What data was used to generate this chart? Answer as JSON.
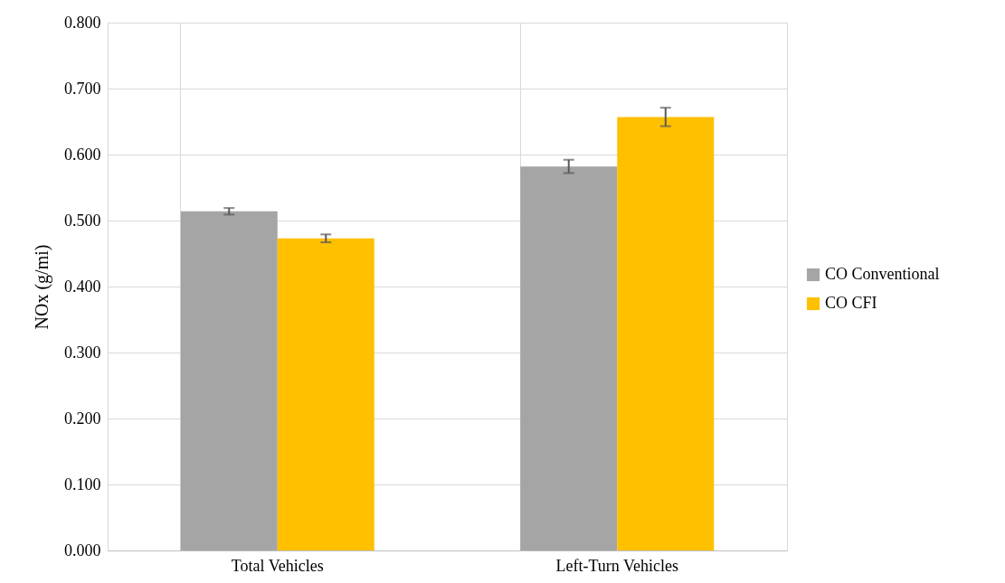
{
  "chart_data": {
    "type": "bar",
    "ylabel": "NOx (g/mi)",
    "categories": [
      "Total Vehicles",
      "Left-Turn Vehicles"
    ],
    "series": [
      {
        "name": "CO Conventional",
        "color": "#a5a5a5",
        "values": [
          0.514,
          0.582
        ],
        "errors": [
          0.005,
          0.01
        ]
      },
      {
        "name": "CO CFI",
        "color": "#ffc000",
        "values": [
          0.473,
          0.657
        ],
        "errors": [
          0.006,
          0.014
        ]
      }
    ],
    "ylim": [
      0,
      0.8
    ],
    "yticks": [
      {
        "value": 0,
        "label": "0.000"
      },
      {
        "value": 0.1,
        "label": "0.100"
      },
      {
        "value": 0.2,
        "label": "0.200"
      },
      {
        "value": 0.3,
        "label": "0.300"
      },
      {
        "value": 0.4,
        "label": "0.400"
      },
      {
        "value": 0.5,
        "label": "0.500"
      },
      {
        "value": 0.6,
        "label": "0.600"
      },
      {
        "value": 0.7,
        "label": "0.700"
      },
      {
        "value": 0.8,
        "label": "0.800"
      }
    ],
    "grid": true,
    "legend": "right"
  }
}
